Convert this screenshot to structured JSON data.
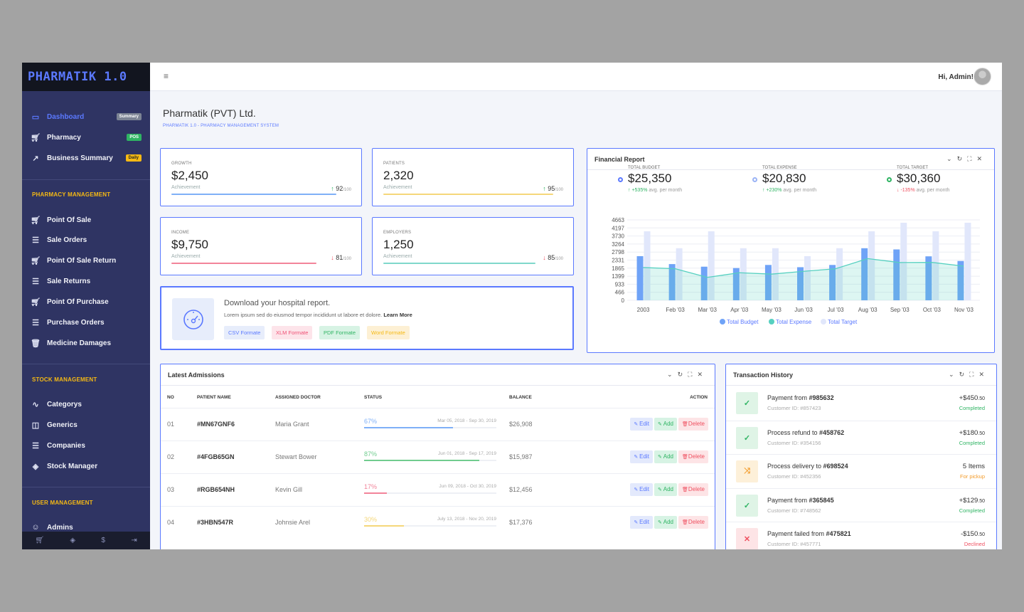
{
  "brand": "PHARMATIK 1.0",
  "sidebar": {
    "items": [
      {
        "label": "Dashboard",
        "badge": "Summary"
      },
      {
        "label": "Pharmacy",
        "badge": "POS"
      },
      {
        "label": "Business Summary",
        "badge": "Daily"
      }
    ],
    "pharmacy_title": "PHARMACY MANAGEMENT",
    "pharmacy_items": [
      "Point Of Sale",
      "Sale Orders",
      "Point Of Sale Return",
      "Sale Returns",
      "Point Of Purchase",
      "Purchase Orders",
      "Medicine Damages"
    ],
    "stock_title": "STOCK MANAGEMENT",
    "stock_items": [
      "Categorys",
      "Generics",
      "Companies",
      "Stock Manager"
    ],
    "user_title": "USER MANAGEMENT",
    "user_items": [
      "Admins"
    ]
  },
  "header": {
    "greeting": "Hi, Admin!"
  },
  "page": {
    "title": "Pharmatik (PVT) Ltd.",
    "subtitle": "PHARMATIK 1.0 - PHARMACY MANAGEMENT SYSTEM"
  },
  "stats": [
    {
      "label": "GROWTH",
      "value": "$2,450",
      "sub": "Achievement",
      "pct": "92",
      "of": "/100",
      "dir": "up",
      "color": "#7fb0f7",
      "progress": 0.92
    },
    {
      "label": "PATIENTS",
      "value": "2,320",
      "sub": "Achievement",
      "pct": "95",
      "of": "/100",
      "dir": "up",
      "color": "#f5d77a",
      "progress": 0.95
    },
    {
      "label": "INCOME",
      "value": "$9,750",
      "sub": "Achievement",
      "pct": "81",
      "of": "/100",
      "dir": "down",
      "color": "#f2849a",
      "progress": 0.81
    },
    {
      "label": "EMPLOYERS",
      "value": "1,250",
      "sub": "Achievement",
      "pct": "85",
      "of": "/100",
      "dir": "down",
      "color": "#7fd8cb",
      "progress": 0.85
    }
  ],
  "download": {
    "title": "Download your hospital report.",
    "desc": "Lorem ipsum sed do eiusmod tempor incididunt ut labore et dolore.",
    "link": "Learn More",
    "formats": [
      "CSV Formate",
      "XLM Formate",
      "PDF Formate",
      "Word Formate"
    ]
  },
  "finance": {
    "title": "Financial Report",
    "kpis": [
      {
        "label": "TOTAL BUDGET",
        "value": "$25,350",
        "change": "↑ +535%",
        "note": "avg. per month",
        "color": "#5b79ff",
        "change_color": "#2fb463"
      },
      {
        "label": "TOTAL EXPENSE",
        "value": "$20,830",
        "change": "↑ +230%",
        "note": "avg. per month",
        "color": "#9ab3f5",
        "change_color": "#2fb463"
      },
      {
        "label": "TOTAL TARGET",
        "value": "$30,360",
        "change": "↓ -135%",
        "note": "avg. per month",
        "color": "#2fb463",
        "change_color": "#ef5060"
      }
    ]
  },
  "chart_data": {
    "type": "bar",
    "categories": [
      "2003",
      "Feb '03",
      "Mar '03",
      "Apr '03",
      "May '03",
      "Jun '03",
      "Jul '03",
      "Aug '03",
      "Sep '03",
      "Oct '03",
      "Nov '03"
    ],
    "ylim": [
      0,
      4663
    ],
    "yticks": [
      "4663",
      "4197",
      "3730",
      "3264",
      "2798",
      "2331",
      "1865",
      "1399",
      "933",
      "466",
      "0"
    ],
    "series": [
      {
        "name": "Total Budget",
        "type": "bar",
        "color": "#6fa3f7",
        "values": [
          2560,
          2100,
          1950,
          1870,
          2050,
          1920,
          2050,
          3020,
          2950,
          2550,
          2280
        ]
      },
      {
        "name": "Total Expense",
        "type": "area",
        "color": "#56d0c0",
        "values": [
          1900,
          1830,
          1330,
          1600,
          1520,
          1680,
          1830,
          2420,
          2190,
          2200,
          1980
        ]
      },
      {
        "name": "Total Target",
        "type": "bar",
        "color": "#e1e7fb",
        "values": [
          4000,
          3020,
          4000,
          3020,
          3020,
          2560,
          3020,
          4000,
          4500,
          4000,
          4500
        ]
      }
    ]
  },
  "admissions": {
    "title": "Latest Admissions",
    "headers": [
      "NO",
      "PATIENT NAME",
      "ASSIGNED DOCTOR",
      "STATUS",
      "BALANCE",
      "ACTION"
    ],
    "rows": [
      {
        "no": "01",
        "id": "#MN67GNF6",
        "doctor": "Maria Grant",
        "pct": "67%",
        "range": "Mar 05, 2018 - Sep 30, 2019",
        "balance": "$26,908",
        "color": "#7fb0f7",
        "progress": 0.67
      },
      {
        "no": "02",
        "id": "#4FGB65GN",
        "doctor": "Stewart Bower",
        "pct": "87%",
        "range": "Jun 01, 2018 - Sep 17, 2019",
        "balance": "$15,987",
        "color": "#71cc8f",
        "progress": 0.87
      },
      {
        "no": "03",
        "id": "#RGB654NH",
        "doctor": "Kevin Gill",
        "pct": "17%",
        "range": "Jun 09, 2018 - Oct 30, 2019",
        "balance": "$12,456",
        "color": "#f2849a",
        "progress": 0.17
      },
      {
        "no": "04",
        "id": "#3HBN547R",
        "doctor": "Johnsie Arel",
        "pct": "30%",
        "range": "July 13, 2018 - Nov 20, 2019",
        "balance": "$17,376",
        "color": "#f5d77a",
        "progress": 0.3
      }
    ],
    "actions": {
      "edit": "Edit",
      "add": "Add",
      "delete": "Delete"
    }
  },
  "transactions": {
    "title": "Transaction History",
    "rows": [
      {
        "text": "Payment from ",
        "ref": "#985632",
        "cust": "Customer ID: #857423",
        "amount": "+$450",
        "cents": ".50",
        "status": "Completed",
        "status_color": "#2fb463",
        "icon": "✓",
        "icon_bg": "#dff4e6",
        "icon_color": "#2fb463"
      },
      {
        "text": "Process refund to ",
        "ref": "#458762",
        "cust": "Customer ID: #354156",
        "amount": "+$180",
        "cents": ".50",
        "status": "Completed",
        "status_color": "#2fb463",
        "icon": "✓",
        "icon_bg": "#dff4e6",
        "icon_color": "#2fb463"
      },
      {
        "text": "Process delivery to ",
        "ref": "#698524",
        "cust": "Customer ID: #452356",
        "amount": "5 Items",
        "cents": "",
        "status": "For pickup",
        "status_color": "#f39c2b",
        "icon": "⤨",
        "icon_bg": "#fdf0d9",
        "icon_color": "#f39c2b"
      },
      {
        "text": "Payment from ",
        "ref": "#365845",
        "cust": "Customer ID: #748562",
        "amount": "+$129",
        "cents": ".50",
        "status": "Completed",
        "status_color": "#2fb463",
        "icon": "✓",
        "icon_bg": "#dff4e6",
        "icon_color": "#2fb463"
      },
      {
        "text": "Payment failed from ",
        "ref": "#475821",
        "cust": "Customer ID: #457771",
        "amount": "-$150",
        "cents": ".50",
        "status": "Declined",
        "status_color": "#ef5060",
        "icon": "✕",
        "icon_bg": "#fde4e6",
        "icon_color": "#ef5060"
      }
    ]
  }
}
